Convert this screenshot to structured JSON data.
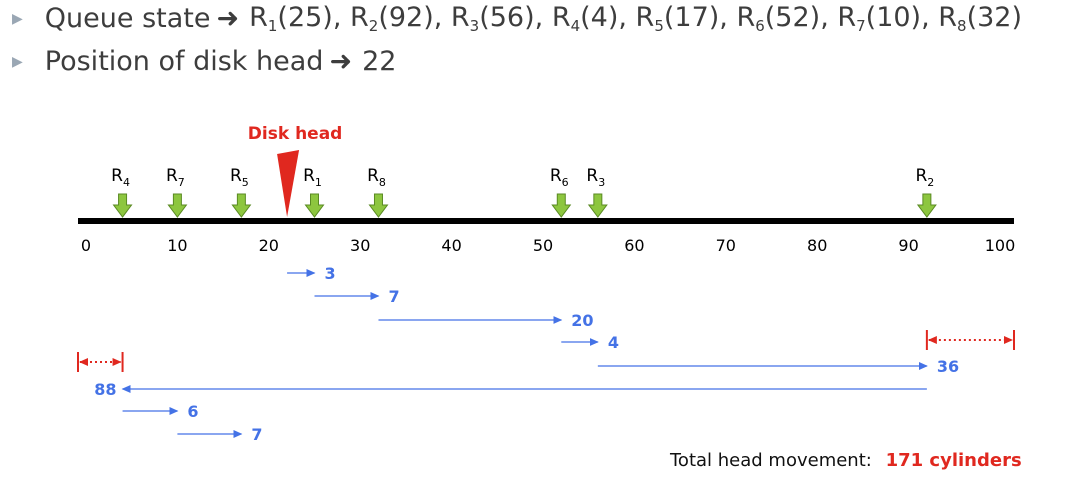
{
  "queue_state": {
    "label": "Queue state",
    "requests": [
      {
        "name": "R",
        "sub": "1",
        "value": "(25)"
      },
      {
        "name": "R",
        "sub": "2",
        "value": "(92)"
      },
      {
        "name": "R",
        "sub": "3",
        "value": "(56)"
      },
      {
        "name": "R",
        "sub": "4",
        "value": "(4)"
      },
      {
        "name": "R",
        "sub": "5",
        "value": "(17)"
      },
      {
        "name": "R",
        "sub": "6",
        "value": "(52)"
      },
      {
        "name": "R",
        "sub": "7",
        "value": "(10)"
      },
      {
        "name": "R",
        "sub": "8",
        "value": "(32)"
      }
    ]
  },
  "head_position": {
    "label": "Position of disk head",
    "value": "22"
  },
  "disk_head_label": "Disk head",
  "head_cylinder": 22,
  "axis": {
    "min": 0,
    "max": 100,
    "ticks": [
      "0",
      "10",
      "20",
      "30",
      "40",
      "50",
      "60",
      "70",
      "80",
      "90",
      "100"
    ]
  },
  "markers": [
    {
      "label": "R",
      "sub": "4",
      "cylinder": 4
    },
    {
      "label": "R",
      "sub": "7",
      "cylinder": 10
    },
    {
      "label": "R",
      "sub": "5",
      "cylinder": 17
    },
    {
      "label": "R",
      "sub": "1",
      "cylinder": 25
    },
    {
      "label": "R",
      "sub": "8",
      "cylinder": 32
    },
    {
      "label": "R",
      "sub": "6",
      "cylinder": 52
    },
    {
      "label": "R",
      "sub": "3",
      "cylinder": 56
    },
    {
      "label": "R",
      "sub": "2",
      "cylinder": 92
    }
  ],
  "movements": [
    {
      "from": 22,
      "to": 25,
      "label": "3"
    },
    {
      "from": 25,
      "to": 32,
      "label": "7"
    },
    {
      "from": 32,
      "to": 52,
      "label": "20"
    },
    {
      "from": 52,
      "to": 56,
      "label": "4"
    },
    {
      "from": 56,
      "to": 92,
      "label": "36"
    },
    {
      "from": 92,
      "to": 4,
      "label": "88"
    },
    {
      "from": 4,
      "to": 10,
      "label": "6"
    },
    {
      "from": 10,
      "to": 17,
      "label": "7"
    }
  ],
  "wrap_segments": [
    {
      "from": 0,
      "to": 4
    },
    {
      "from": 92,
      "to": 100
    }
  ],
  "total": {
    "label": "Total head movement:",
    "value": "171 cylinders"
  },
  "colors": {
    "head": "#e0281f",
    "marker_fill": "#8dc63f",
    "marker_stroke": "#5a8a23",
    "movement": "#4472e6",
    "wrap": "#e0281f",
    "axis": "#000000"
  }
}
